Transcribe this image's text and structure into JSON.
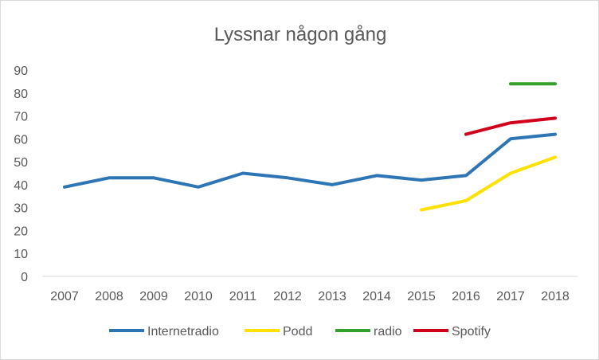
{
  "chart_data": {
    "type": "line",
    "title": "Lyssnar någon gång",
    "xlabel": "",
    "ylabel": "",
    "ylim": [
      0,
      90
    ],
    "yticks": [
      "0",
      "10",
      "20",
      "30",
      "40",
      "50",
      "60",
      "70",
      "80",
      "90"
    ],
    "categories": [
      "2007",
      "2008",
      "2009",
      "2010",
      "2011",
      "2012",
      "2013",
      "2014",
      "2015",
      "2016",
      "2017",
      "2018"
    ],
    "grid": "off",
    "legend": "bottom",
    "series": [
      {
        "name": "Internetradio",
        "color": "#2e75b6",
        "values": [
          39,
          43,
          43,
          39,
          45,
          43,
          40,
          44,
          42,
          44,
          60,
          62
        ]
      },
      {
        "name": "Podd",
        "color": "#ffe100",
        "values": [
          null,
          null,
          null,
          null,
          null,
          null,
          null,
          null,
          29,
          33,
          45,
          52
        ]
      },
      {
        "name": "radio",
        "color": "#33a02c",
        "values": [
          null,
          null,
          null,
          null,
          null,
          null,
          null,
          null,
          null,
          null,
          84,
          84
        ]
      },
      {
        "name": "Spotify",
        "color": "#d0021b",
        "values": [
          null,
          null,
          null,
          null,
          null,
          null,
          null,
          null,
          null,
          62,
          67,
          69
        ]
      }
    ]
  }
}
